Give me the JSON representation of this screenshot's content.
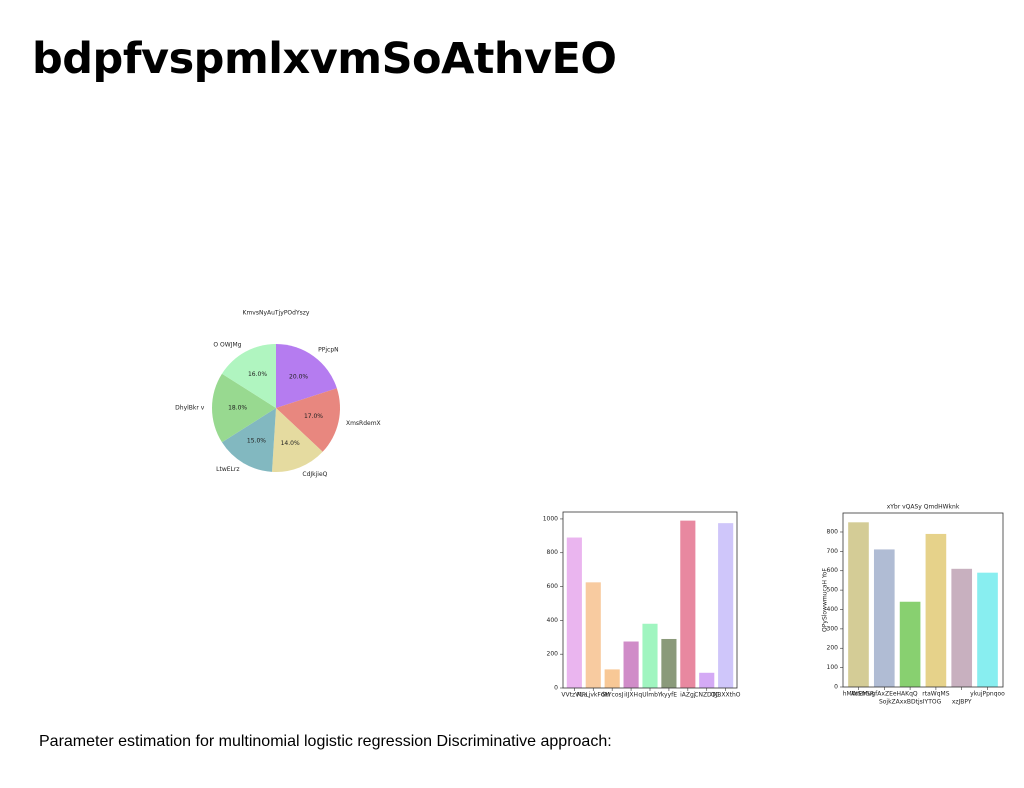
{
  "title": "bdpfvspmlxvmSoAthvEO",
  "caption": "Parameter estimation for multinomial logistic regression Discriminative approach:",
  "chart_data": [
    {
      "type": "pie",
      "title": "KmvsNyAuTjyPOdYszy",
      "categories": [
        "PPjcpN",
        "XmsRdemX",
        "CdJkjieQ",
        "LtwELrz",
        "DhylBkr v",
        "O OWJMg"
      ],
      "values": [
        20,
        17,
        14,
        15,
        18,
        16
      ],
      "value_labels": [
        "20.0%",
        "17.0%",
        "14.0%",
        "15.0%",
        "18.0%",
        "16.0%"
      ],
      "colors": [
        "#b57cf0",
        "#e8877f",
        "#e5dba0",
        "#82b8c0",
        "#98d990",
        "#b0f5c0"
      ]
    },
    {
      "type": "bar",
      "categories": [
        "VVtzVUa",
        "MFLjvkFdM",
        "GtYcosJ",
        "iIJXH",
        "qUlmbY",
        "kyyfE",
        "iAZgj",
        "CNZDTC",
        "QJBXXthO"
      ],
      "values": [
        890,
        625,
        110,
        275,
        380,
        290,
        990,
        90,
        975
      ],
      "colors": [
        "#eab5ef",
        "#f8cba0",
        "#f8c896",
        "#d08cc8",
        "#a0f5c0",
        "#8a9a7a",
        "#e888a0",
        "#d4aaf5",
        "#cfc6fa"
      ],
      "ylim": [
        0,
        1041
      ],
      "yticks": [
        0,
        200,
        400,
        600,
        800,
        1000
      ]
    },
    {
      "type": "bar",
      "title": "xYbr vQASy QmdHWknk",
      "ylabel": "QPySlowwmucaH YoF",
      "categories": [
        "hMWStrSR",
        "AoEMugfAxZEeHAKqQ",
        "SojkZAxxBDtjsIYTOG",
        "rtaWqMS",
        "xzJBPY",
        "ykujPpnqoo"
      ],
      "values": [
        850,
        710,
        440,
        790,
        610,
        590
      ],
      "colors": [
        "#d4cc96",
        "#b0bcd4",
        "#88d070",
        "#e6d28a",
        "#c8b0bf",
        "#88eef0"
      ],
      "ylim": [
        0,
        898
      ],
      "yticks": [
        0,
        100,
        200,
        300,
        400,
        500,
        600,
        700,
        800
      ],
      "stagger": true
    }
  ]
}
